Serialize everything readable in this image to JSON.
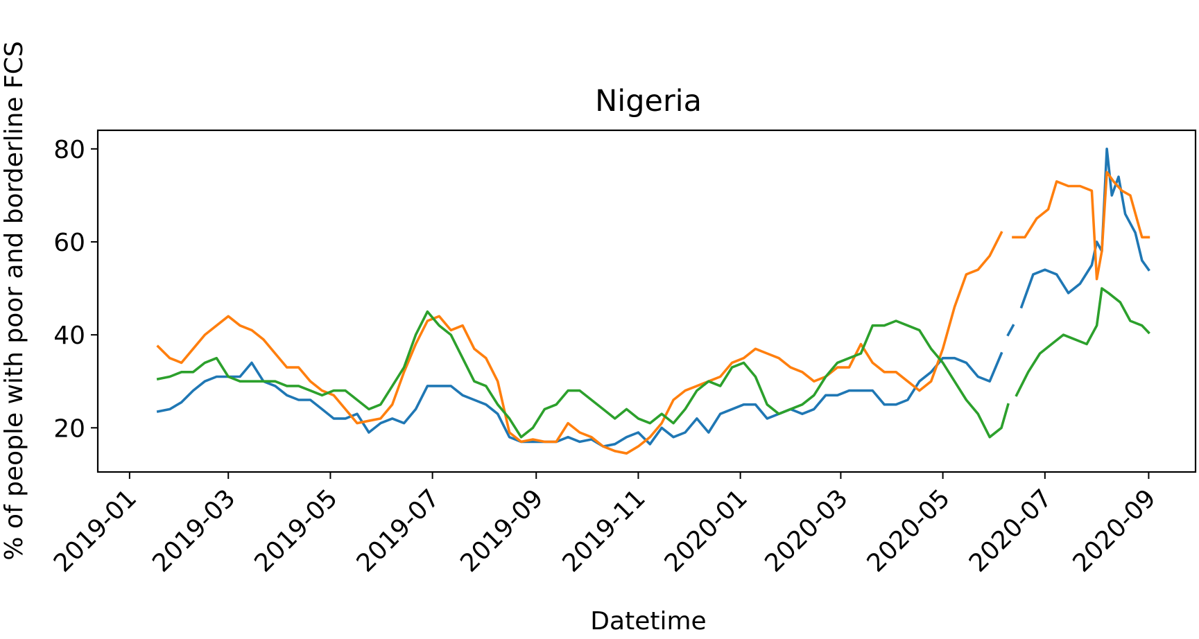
{
  "chart_data": {
    "type": "line",
    "title": "Nigeria",
    "xlabel": "Datetime",
    "ylabel": "% of people with poor and borderline FCS",
    "xlim": [
      "2018-12-13",
      "2020-09-29"
    ],
    "ylim": [
      10.5,
      84
    ],
    "x_ticks": [
      "2019-01",
      "2019-03",
      "2019-05",
      "2019-07",
      "2019-09",
      "2019-11",
      "2020-01",
      "2020-03",
      "2020-05",
      "2020-07",
      "2020-09"
    ],
    "y_ticks": [
      20,
      40,
      60,
      80
    ],
    "grid": false,
    "legend": "none",
    "series": [
      {
        "color": "#1f77b4",
        "points": [
          [
            "2019-01-18",
            23.5
          ],
          [
            "2019-01-25",
            24
          ],
          [
            "2019-02-01",
            25.5
          ],
          [
            "2019-02-08",
            28
          ],
          [
            "2019-02-15",
            30
          ],
          [
            "2019-02-22",
            31
          ],
          [
            "2019-03-01",
            31
          ],
          [
            "2019-03-08",
            31
          ],
          [
            "2019-03-15",
            34
          ],
          [
            "2019-03-22",
            30
          ],
          [
            "2019-03-29",
            29
          ],
          [
            "2019-04-05",
            27
          ],
          [
            "2019-04-12",
            26
          ],
          [
            "2019-04-19",
            26
          ],
          [
            "2019-04-26",
            24
          ],
          [
            "2019-05-03",
            22
          ],
          [
            "2019-05-10",
            22
          ],
          [
            "2019-05-17",
            23
          ],
          [
            "2019-05-24",
            19
          ],
          [
            "2019-05-31",
            21
          ],
          [
            "2019-06-07",
            22
          ],
          [
            "2019-06-14",
            21
          ],
          [
            "2019-06-21",
            24
          ],
          [
            "2019-06-28",
            29
          ],
          [
            "2019-07-05",
            29
          ],
          [
            "2019-07-12",
            29
          ],
          [
            "2019-07-19",
            27
          ],
          [
            "2019-07-26",
            26
          ],
          [
            "2019-08-02",
            25
          ],
          [
            "2019-08-09",
            23
          ],
          [
            "2019-08-16",
            18
          ],
          [
            "2019-08-23",
            17
          ],
          [
            "2019-08-30",
            17
          ],
          [
            "2019-09-06",
            17
          ],
          [
            "2019-09-13",
            17
          ],
          [
            "2019-09-20",
            18
          ],
          [
            "2019-09-27",
            17
          ],
          [
            "2019-10-04",
            17.5
          ],
          [
            "2019-10-11",
            16
          ],
          [
            "2019-10-18",
            16.5
          ],
          [
            "2019-10-25",
            18
          ],
          [
            "2019-11-01",
            19
          ],
          [
            "2019-11-08",
            16.5
          ],
          [
            "2019-11-15",
            20
          ],
          [
            "2019-11-22",
            18
          ],
          [
            "2019-11-29",
            19
          ],
          [
            "2019-12-06",
            22
          ],
          [
            "2019-12-13",
            19
          ],
          [
            "2019-12-20",
            23
          ],
          [
            "2019-12-27",
            24
          ],
          [
            "2020-01-03",
            25
          ],
          [
            "2020-01-10",
            25
          ],
          [
            "2020-01-17",
            22
          ],
          [
            "2020-01-24",
            23
          ],
          [
            "2020-01-31",
            24
          ],
          [
            "2020-02-07",
            23
          ],
          [
            "2020-02-14",
            24
          ],
          [
            "2020-02-21",
            27
          ],
          [
            "2020-02-28",
            27
          ],
          [
            "2020-03-06",
            28
          ],
          [
            "2020-03-13",
            28
          ],
          [
            "2020-03-20",
            28
          ],
          [
            "2020-03-27",
            25
          ],
          [
            "2020-04-03",
            25
          ],
          [
            "2020-04-10",
            26
          ],
          [
            "2020-04-17",
            30
          ],
          [
            "2020-04-24",
            32
          ],
          [
            "2020-05-01",
            35
          ],
          [
            "2020-05-08",
            35
          ],
          [
            "2020-05-15",
            34
          ],
          [
            "2020-05-22",
            31
          ],
          [
            "2020-05-29",
            30
          ],
          [
            "2020-06-05",
            36
          ],
          [
            null,
            null
          ],
          [
            "2020-06-09",
            40
          ],
          [
            "2020-06-12",
            42
          ],
          [
            null,
            null
          ],
          [
            "2020-06-17",
            46
          ],
          [
            "2020-06-24",
            53
          ],
          [
            "2020-07-01",
            54
          ],
          [
            "2020-07-08",
            53
          ],
          [
            "2020-07-15",
            49
          ],
          [
            "2020-07-22",
            51
          ],
          [
            "2020-07-29",
            55
          ],
          [
            "2020-08-01",
            60
          ],
          [
            "2020-08-04",
            58
          ],
          [
            "2020-08-07",
            80
          ],
          [
            "2020-08-10",
            70
          ],
          [
            "2020-08-14",
            74
          ],
          [
            "2020-08-18",
            66
          ],
          [
            "2020-08-24",
            62
          ],
          [
            "2020-08-28",
            56
          ],
          [
            "2020-09-01",
            54
          ]
        ]
      },
      {
        "color": "#ff7f0e",
        "points": [
          [
            "2019-01-18",
            37.5
          ],
          [
            "2019-01-25",
            35
          ],
          [
            "2019-02-01",
            34
          ],
          [
            "2019-02-08",
            37
          ],
          [
            "2019-02-15",
            40
          ],
          [
            "2019-02-22",
            42
          ],
          [
            "2019-03-01",
            44
          ],
          [
            "2019-03-08",
            42
          ],
          [
            "2019-03-15",
            41
          ],
          [
            "2019-03-22",
            39
          ],
          [
            "2019-03-29",
            36
          ],
          [
            "2019-04-05",
            33
          ],
          [
            "2019-04-12",
            33
          ],
          [
            "2019-04-19",
            30
          ],
          [
            "2019-04-26",
            28
          ],
          [
            "2019-05-03",
            27
          ],
          [
            "2019-05-10",
            24
          ],
          [
            "2019-05-17",
            21
          ],
          [
            "2019-05-24",
            21.5
          ],
          [
            "2019-05-31",
            22
          ],
          [
            "2019-06-07",
            25
          ],
          [
            "2019-06-14",
            32
          ],
          [
            "2019-06-21",
            38
          ],
          [
            "2019-06-28",
            43
          ],
          [
            "2019-07-05",
            44
          ],
          [
            "2019-07-12",
            41
          ],
          [
            "2019-07-19",
            42
          ],
          [
            "2019-07-26",
            37
          ],
          [
            "2019-08-02",
            35
          ],
          [
            "2019-08-09",
            30
          ],
          [
            "2019-08-16",
            19
          ],
          [
            "2019-08-23",
            17
          ],
          [
            "2019-08-30",
            17.5
          ],
          [
            "2019-09-06",
            17
          ],
          [
            "2019-09-13",
            17
          ],
          [
            "2019-09-20",
            21
          ],
          [
            "2019-09-27",
            19
          ],
          [
            "2019-10-04",
            18
          ],
          [
            "2019-10-11",
            16
          ],
          [
            "2019-10-18",
            15
          ],
          [
            "2019-10-25",
            14.5
          ],
          [
            "2019-11-01",
            16
          ],
          [
            "2019-11-08",
            18
          ],
          [
            "2019-11-15",
            21
          ],
          [
            "2019-11-22",
            26
          ],
          [
            "2019-11-29",
            28
          ],
          [
            "2019-12-06",
            29
          ],
          [
            "2019-12-13",
            30
          ],
          [
            "2019-12-20",
            31
          ],
          [
            "2019-12-27",
            34
          ],
          [
            "2020-01-03",
            35
          ],
          [
            "2020-01-10",
            37
          ],
          [
            "2020-01-17",
            36
          ],
          [
            "2020-01-24",
            35
          ],
          [
            "2020-01-31",
            33
          ],
          [
            "2020-02-07",
            32
          ],
          [
            "2020-02-14",
            30
          ],
          [
            "2020-02-21",
            31
          ],
          [
            "2020-02-28",
            33
          ],
          [
            "2020-03-06",
            33
          ],
          [
            "2020-03-13",
            38
          ],
          [
            "2020-03-20",
            34
          ],
          [
            "2020-03-27",
            32
          ],
          [
            "2020-04-03",
            32
          ],
          [
            "2020-04-10",
            30
          ],
          [
            "2020-04-17",
            28
          ],
          [
            "2020-04-24",
            30
          ],
          [
            "2020-05-01",
            37
          ],
          [
            "2020-05-08",
            46
          ],
          [
            "2020-05-15",
            53
          ],
          [
            "2020-05-22",
            54
          ],
          [
            "2020-05-29",
            57
          ],
          [
            "2020-06-05",
            62
          ],
          [
            null,
            null
          ],
          [
            "2020-06-12",
            61
          ],
          [
            "2020-06-19",
            61
          ],
          [
            "2020-06-26",
            65
          ],
          [
            "2020-07-03",
            67
          ],
          [
            "2020-07-08",
            73
          ],
          [
            "2020-07-15",
            72
          ],
          [
            "2020-07-22",
            72
          ],
          [
            "2020-07-29",
            71
          ],
          [
            "2020-08-01",
            52
          ],
          [
            "2020-08-04",
            58
          ],
          [
            "2020-08-07",
            75
          ],
          [
            "2020-08-11",
            73
          ],
          [
            "2020-08-16",
            71
          ],
          [
            "2020-08-21",
            70
          ],
          [
            "2020-08-28",
            61
          ],
          [
            "2020-09-01",
            61
          ]
        ]
      },
      {
        "color": "#2ca02c",
        "points": [
          [
            "2019-01-18",
            30.5
          ],
          [
            "2019-01-25",
            31
          ],
          [
            "2019-02-01",
            32
          ],
          [
            "2019-02-08",
            32
          ],
          [
            "2019-02-15",
            34
          ],
          [
            "2019-02-22",
            35
          ],
          [
            "2019-03-01",
            31
          ],
          [
            "2019-03-08",
            30
          ],
          [
            "2019-03-15",
            30
          ],
          [
            "2019-03-22",
            30
          ],
          [
            "2019-03-29",
            30
          ],
          [
            "2019-04-05",
            29
          ],
          [
            "2019-04-12",
            29
          ],
          [
            "2019-04-19",
            28
          ],
          [
            "2019-04-26",
            27
          ],
          [
            "2019-05-03",
            28
          ],
          [
            "2019-05-10",
            28
          ],
          [
            "2019-05-17",
            26
          ],
          [
            "2019-05-24",
            24
          ],
          [
            "2019-05-31",
            25
          ],
          [
            "2019-06-07",
            29
          ],
          [
            "2019-06-14",
            33
          ],
          [
            "2019-06-21",
            40
          ],
          [
            "2019-06-28",
            45
          ],
          [
            "2019-07-05",
            42
          ],
          [
            "2019-07-12",
            40
          ],
          [
            "2019-07-19",
            35
          ],
          [
            "2019-07-26",
            30
          ],
          [
            "2019-08-02",
            29
          ],
          [
            "2019-08-09",
            25
          ],
          [
            "2019-08-16",
            22
          ],
          [
            "2019-08-23",
            18
          ],
          [
            "2019-08-30",
            20
          ],
          [
            "2019-09-06",
            24
          ],
          [
            "2019-09-13",
            25
          ],
          [
            "2019-09-20",
            28
          ],
          [
            "2019-09-27",
            28
          ],
          [
            "2019-10-04",
            26
          ],
          [
            "2019-10-11",
            24
          ],
          [
            "2019-10-18",
            22
          ],
          [
            "2019-10-25",
            24
          ],
          [
            "2019-11-01",
            22
          ],
          [
            "2019-11-08",
            21
          ],
          [
            "2019-11-15",
            23
          ],
          [
            "2019-11-22",
            21
          ],
          [
            "2019-11-29",
            24
          ],
          [
            "2019-12-06",
            28
          ],
          [
            "2019-12-13",
            30
          ],
          [
            "2019-12-20",
            29
          ],
          [
            "2019-12-27",
            33
          ],
          [
            "2020-01-03",
            34
          ],
          [
            "2020-01-10",
            31
          ],
          [
            "2020-01-17",
            25
          ],
          [
            "2020-01-24",
            23
          ],
          [
            "2020-01-31",
            24
          ],
          [
            "2020-02-07",
            25
          ],
          [
            "2020-02-14",
            27
          ],
          [
            "2020-02-21",
            31
          ],
          [
            "2020-02-28",
            34
          ],
          [
            "2020-03-06",
            35
          ],
          [
            "2020-03-13",
            36
          ],
          [
            "2020-03-20",
            42
          ],
          [
            "2020-03-27",
            42
          ],
          [
            "2020-04-03",
            43
          ],
          [
            "2020-04-10",
            42
          ],
          [
            "2020-04-17",
            41
          ],
          [
            "2020-04-24",
            37
          ],
          [
            "2020-05-01",
            34
          ],
          [
            "2020-05-08",
            30
          ],
          [
            "2020-05-15",
            26
          ],
          [
            "2020-05-22",
            23
          ],
          [
            "2020-05-29",
            18
          ],
          [
            "2020-06-05",
            20
          ],
          [
            "2020-06-09",
            25
          ],
          [
            null,
            null
          ],
          [
            "2020-06-14",
            27
          ],
          [
            "2020-06-21",
            32
          ],
          [
            "2020-06-28",
            36
          ],
          [
            "2020-07-05",
            38
          ],
          [
            "2020-07-12",
            40
          ],
          [
            "2020-07-19",
            39
          ],
          [
            "2020-07-26",
            38
          ],
          [
            "2020-08-01",
            42
          ],
          [
            "2020-08-04",
            50
          ],
          [
            "2020-08-08",
            49
          ],
          [
            "2020-08-15",
            47
          ],
          [
            "2020-08-21",
            43
          ],
          [
            "2020-08-28",
            42
          ],
          [
            "2020-09-01",
            40.5
          ]
        ]
      }
    ]
  }
}
